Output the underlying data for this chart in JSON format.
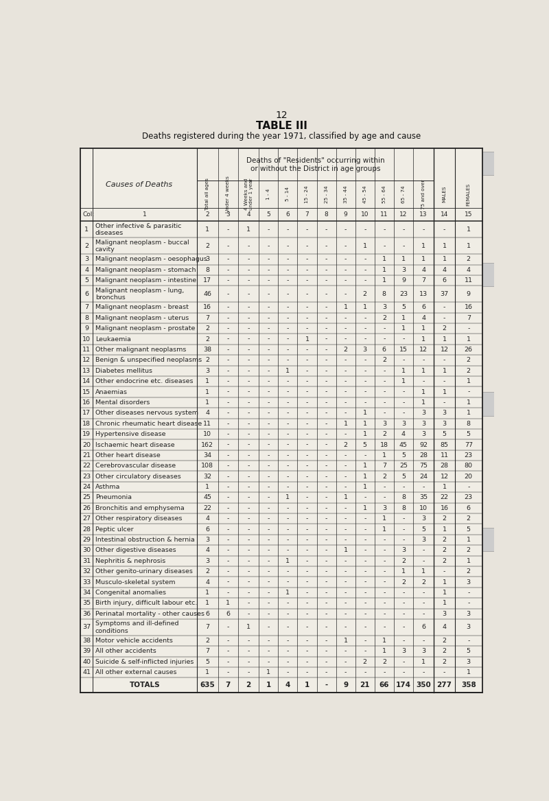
{
  "page_number": "12",
  "title": "TABLE III",
  "subtitle": "Deaths registered during the year 1971, classified by age and cause",
  "header_span": "Deaths of \"Residents\" occurring within\nor without the District in age groups",
  "rows": [
    {
      "num": "1",
      "cause": "Other infective & parasitic\ndiseases",
      "data": [
        "1",
        "-",
        "1",
        "-",
        "-",
        "-",
        "-",
        "-",
        "-",
        "-",
        "-",
        "-",
        "-",
        "1"
      ]
    },
    {
      "num": "2",
      "cause": "Malignant neoplasm - buccal\ncavity",
      "data": [
        "2",
        "-",
        "-",
        "-",
        "-",
        "-",
        "-",
        "-",
        "1",
        "-",
        "-",
        "1",
        "1",
        "1"
      ]
    },
    {
      "num": "3",
      "cause": "Malignant neoplasm - oesophagus",
      "data": [
        "3",
        "-",
        "-",
        "-",
        "-",
        "-",
        "-",
        "-",
        "-",
        "1",
        "1",
        "1",
        "1",
        "2"
      ]
    },
    {
      "num": "4",
      "cause": "Malignant neoplasm - stomach",
      "data": [
        "8",
        "-",
        "-",
        "-",
        "-",
        "-",
        "-",
        "-",
        "-",
        "1",
        "3",
        "4",
        "4",
        "4"
      ]
    },
    {
      "num": "5",
      "cause": "Malignant neoplasm - intestine",
      "data": [
        "17",
        "-",
        "-",
        "-",
        "-",
        "-",
        "-",
        "-",
        "-",
        "1",
        "9",
        "7",
        "6",
        "11"
      ]
    },
    {
      "num": "6",
      "cause": "Malignant neoplasm - lung,\nbronchus",
      "data": [
        "46",
        "-",
        "-",
        "-",
        "-",
        "-",
        "-",
        "-",
        "2",
        "8",
        "23",
        "13",
        "37",
        "9"
      ]
    },
    {
      "num": "7",
      "cause": "Malignant neoplasm - breast",
      "data": [
        "16",
        "-",
        "-",
        "-",
        "-",
        "-",
        "-",
        "1",
        "1",
        "3",
        "5",
        "6",
        "-",
        "16"
      ]
    },
    {
      "num": "8",
      "cause": "Malignant neoplasm - uterus",
      "data": [
        "7",
        "-",
        "-",
        "-",
        "-",
        "-",
        "-",
        "-",
        "-",
        "2",
        "1",
        "4",
        "-",
        "7"
      ]
    },
    {
      "num": "9",
      "cause": "Malignant neoplasm - prostate",
      "data": [
        "2",
        "-",
        "-",
        "-",
        "-",
        "-",
        "-",
        "-",
        "-",
        "-",
        "1",
        "1",
        "2",
        "-"
      ]
    },
    {
      "num": "10",
      "cause": "Leukaemia",
      "data": [
        "2",
        "-",
        "-",
        "-",
        "-",
        "1",
        "-",
        "-",
        "-",
        "-",
        "-",
        "1",
        "1",
        "1"
      ]
    },
    {
      "num": "11",
      "cause": "Other malignant neoplasms",
      "data": [
        "38",
        "-",
        "-",
        "-",
        "-",
        "-",
        "-",
        "2",
        "3",
        "6",
        "15",
        "12",
        "12",
        "26"
      ]
    },
    {
      "num": "12",
      "cause": "Benign & unspecified neoplasms",
      "data": [
        "2",
        "-",
        "-",
        "-",
        "-",
        "-",
        "-",
        "-",
        "-",
        "2",
        "-",
        "-",
        "-",
        "2"
      ]
    },
    {
      "num": "13",
      "cause": "Diabetes mellitus",
      "data": [
        "3",
        "-",
        "-",
        "-",
        "1",
        "-",
        "-",
        "-",
        "-",
        "-",
        "1",
        "1",
        "1",
        "2"
      ]
    },
    {
      "num": "14",
      "cause": "Other endocrine etc. diseases",
      "data": [
        "1",
        "-",
        "-",
        "-",
        "-",
        "-",
        "-",
        "-",
        "-",
        "-",
        "1",
        "-",
        "-",
        "1"
      ]
    },
    {
      "num": "15",
      "cause": "Anaemias",
      "data": [
        "1",
        "-",
        "-",
        "-",
        "-",
        "-",
        "-",
        "-",
        "-",
        "-",
        "-",
        "1",
        "1",
        "-"
      ]
    },
    {
      "num": "16",
      "cause": "Mental disorders",
      "data": [
        "1",
        "-",
        "-",
        "-",
        "-",
        "-",
        "-",
        "-",
        "-",
        "-",
        "-",
        "1",
        "-",
        "1"
      ]
    },
    {
      "num": "17",
      "cause": "Other diseases nervous system",
      "data": [
        "4",
        "-",
        "-",
        "-",
        "-",
        "-",
        "-",
        "-",
        "1",
        "-",
        "-",
        "3",
        "3",
        "1"
      ]
    },
    {
      "num": "18",
      "cause": "Chronic rheumatic heart disease",
      "data": [
        "11",
        "-",
        "-",
        "-",
        "-",
        "-",
        "-",
        "1",
        "1",
        "3",
        "3",
        "3",
        "3",
        "8"
      ]
    },
    {
      "num": "19",
      "cause": "Hypertensive disease",
      "data": [
        "10",
        "-",
        "-",
        "-",
        "-",
        "-",
        "-",
        "-",
        "1",
        "2",
        "4",
        "3",
        "5",
        "5"
      ]
    },
    {
      "num": "20",
      "cause": "Ischaemic heart disease",
      "data": [
        "162",
        "-",
        "-",
        "-",
        "-",
        "-",
        "-",
        "2",
        "5",
        "18",
        "45",
        "92",
        "85",
        "77"
      ]
    },
    {
      "num": "21",
      "cause": "Other heart disease",
      "data": [
        "34",
        "-",
        "-",
        "-",
        "-",
        "-",
        "-",
        "-",
        "-",
        "1",
        "5",
        "28",
        "11",
        "23"
      ]
    },
    {
      "num": "22",
      "cause": "Cerebrovascular disease",
      "data": [
        "108",
        "-",
        "-",
        "-",
        "-",
        "-",
        "-",
        "-",
        "1",
        "7",
        "25",
        "75",
        "28",
        "80"
      ]
    },
    {
      "num": "23",
      "cause": "Other circulatory diseases",
      "data": [
        "32",
        "-",
        "-",
        "-",
        "-",
        "-",
        "-",
        "-",
        "1",
        "2",
        "5",
        "24",
        "12",
        "20"
      ]
    },
    {
      "num": "24",
      "cause": "Asthma",
      "data": [
        "1",
        "-",
        "-",
        "-",
        "-",
        "-",
        "-",
        "-",
        "1",
        "-",
        "-",
        "-",
        "1",
        "-"
      ]
    },
    {
      "num": "25",
      "cause": "Pneumonia",
      "data": [
        "45",
        "-",
        "-",
        "-",
        "1",
        "-",
        "-",
        "1",
        "-",
        "-",
        "8",
        "35",
        "22",
        "23"
      ]
    },
    {
      "num": "26",
      "cause": "Bronchitis and emphysema",
      "data": [
        "22",
        "-",
        "-",
        "-",
        "-",
        "-",
        "-",
        "-",
        "1",
        "3",
        "8",
        "10",
        "16",
        "6"
      ]
    },
    {
      "num": "27",
      "cause": "Other respiratory diseases",
      "data": [
        "4",
        "-",
        "-",
        "-",
        "-",
        "-",
        "-",
        "-",
        "-",
        "1",
        "-",
        "3",
        "2",
        "2"
      ]
    },
    {
      "num": "28",
      "cause": "Peptic ulcer",
      "data": [
        "6",
        "-",
        "-",
        "-",
        "-",
        "-",
        "-",
        "-",
        "-",
        "1",
        "-",
        "5",
        "1",
        "5"
      ]
    },
    {
      "num": "29",
      "cause": "Intestinal obstruction & hernia",
      "data": [
        "3",
        "-",
        "-",
        "-",
        "-",
        "-",
        "-",
        "-",
        "-",
        "-",
        "-",
        "3",
        "2",
        "1"
      ]
    },
    {
      "num": "30",
      "cause": "Other digestive diseases",
      "data": [
        "4",
        "-",
        "-",
        "-",
        "-",
        "-",
        "-",
        "1",
        "-",
        "-",
        "3",
        "-",
        "2",
        "2"
      ]
    },
    {
      "num": "31",
      "cause": "Nephritis & nephrosis",
      "data": [
        "3",
        "-",
        "-",
        "-",
        "1",
        "-",
        "-",
        "-",
        "-",
        "-",
        "2",
        "-",
        "2",
        "1"
      ]
    },
    {
      "num": "32",
      "cause": "Other genito-urinary diseases",
      "data": [
        "2",
        "-",
        "-",
        "-",
        "-",
        "-",
        "-",
        "-",
        "-",
        "-",
        "1",
        "1",
        "-",
        "2"
      ]
    },
    {
      "num": "33",
      "cause": "Musculo-skeletal system",
      "data": [
        "4",
        "-",
        "-",
        "-",
        "-",
        "-",
        "-",
        "-",
        "-",
        "-",
        "2",
        "2",
        "1",
        "3"
      ]
    },
    {
      "num": "34",
      "cause": "Congenital anomalies",
      "data": [
        "1",
        "-",
        "-",
        "-",
        "1",
        "-",
        "-",
        "-",
        "-",
        "-",
        "-",
        "-",
        "1",
        "-"
      ]
    },
    {
      "num": "35",
      "cause": "Birth injury, difficult labour etc.",
      "data": [
        "1",
        "1",
        "-",
        "-",
        "-",
        "-",
        "-",
        "-",
        "-",
        "-",
        "-",
        "-",
        "1",
        "-"
      ]
    },
    {
      "num": "36",
      "cause": "Perinatal mortality - other causes",
      "data": [
        "6",
        "6",
        "-",
        "-",
        "-",
        "-",
        "-",
        "-",
        "-",
        "-",
        "-",
        "-",
        "3",
        "3"
      ]
    },
    {
      "num": "37",
      "cause": "Symptoms and ill-defined\nconditions",
      "data": [
        "7",
        "-",
        "1",
        "-",
        "-",
        "-",
        "-",
        "-",
        "-",
        "-",
        "-",
        "6",
        "4",
        "3"
      ]
    },
    {
      "num": "38",
      "cause": "Motor vehicle accidents",
      "data": [
        "2",
        "-",
        "-",
        "-",
        "-",
        "-",
        "-",
        "1",
        "-",
        "1",
        "-",
        "-",
        "2",
        "-"
      ]
    },
    {
      "num": "39",
      "cause": "All other accidents",
      "data": [
        "7",
        "-",
        "-",
        "-",
        "-",
        "-",
        "-",
        "-",
        "-",
        "1",
        "3",
        "3",
        "2",
        "5"
      ]
    },
    {
      "num": "40",
      "cause": "Suicide & self-inflicted injuries",
      "data": [
        "5",
        "-",
        "-",
        "-",
        "-",
        "-",
        "-",
        "-",
        "2",
        "2",
        "-",
        "1",
        "2",
        "3"
      ]
    },
    {
      "num": "41",
      "cause": "All other external causes",
      "data": [
        "1",
        "-",
        "-",
        "1",
        "-",
        "-",
        "-",
        "-",
        "-",
        "-",
        "-",
        "-",
        "-",
        "1"
      ]
    },
    {
      "num": "",
      "cause": "TOTALS",
      "data": [
        "635",
        "7",
        "2",
        "1",
        "4",
        "1",
        "-",
        "9",
        "21",
        "66",
        "174",
        "350",
        "277",
        "358"
      ]
    }
  ],
  "col_header_labels": [
    "Total all ages",
    "Under 4 weeks",
    "4 Weeks and\nunder 1 year",
    "1 - 4",
    "5 - 14",
    "15 - 24",
    "25 - 34",
    "35 - 44",
    "45 - 54",
    "55 - 64",
    "65 - 74",
    "75 and over",
    "MALES",
    "FEMALES"
  ],
  "col_nums": [
    "2",
    "3",
    "4",
    "5",
    "6",
    "7",
    "8",
    "9",
    "10",
    "11",
    "12",
    "13",
    "14",
    "15"
  ],
  "bg_color": "#e8e4dc",
  "table_bg": "#f0ede5",
  "line_color": "#222222",
  "text_color": "#111111"
}
